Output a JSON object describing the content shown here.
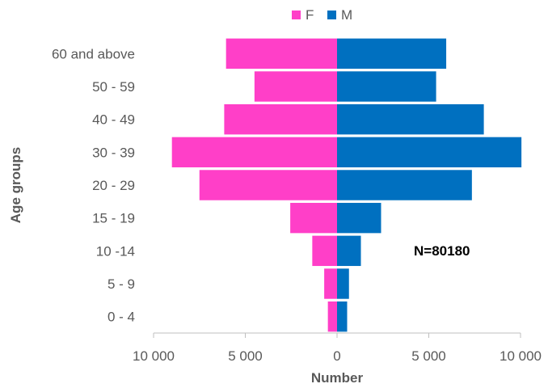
{
  "chart_data": {
    "type": "bar",
    "orientation": "horizontal",
    "layout": "population-pyramid",
    "categories": [
      "0 - 4",
      "5 - 9",
      "10 -14",
      "15 - 19",
      "20 - 29",
      "30 - 39",
      "40 - 49",
      "50 - 59",
      "60 and above"
    ],
    "series": [
      {
        "name": "F",
        "color": "#FF3FC8",
        "side": "left",
        "values": [
          500,
          700,
          1350,
          2550,
          7500,
          9000,
          6150,
          4500,
          6050
        ]
      },
      {
        "name": "M",
        "color": "#0070C0",
        "side": "right",
        "values": [
          550,
          650,
          1300,
          2400,
          7350,
          10050,
          8000,
          5400,
          5950
        ]
      }
    ],
    "xlabel": "Number",
    "ylabel": "Age groups",
    "xlim": [
      -10000,
      10000
    ],
    "xticks": [
      -10000,
      -5000,
      0,
      5000,
      10000
    ],
    "xtick_labels": [
      "10 000",
      "5 000",
      "0",
      "5 000",
      "10 000"
    ],
    "annotation": "N=80180",
    "legend_position": "top",
    "grid": false
  }
}
